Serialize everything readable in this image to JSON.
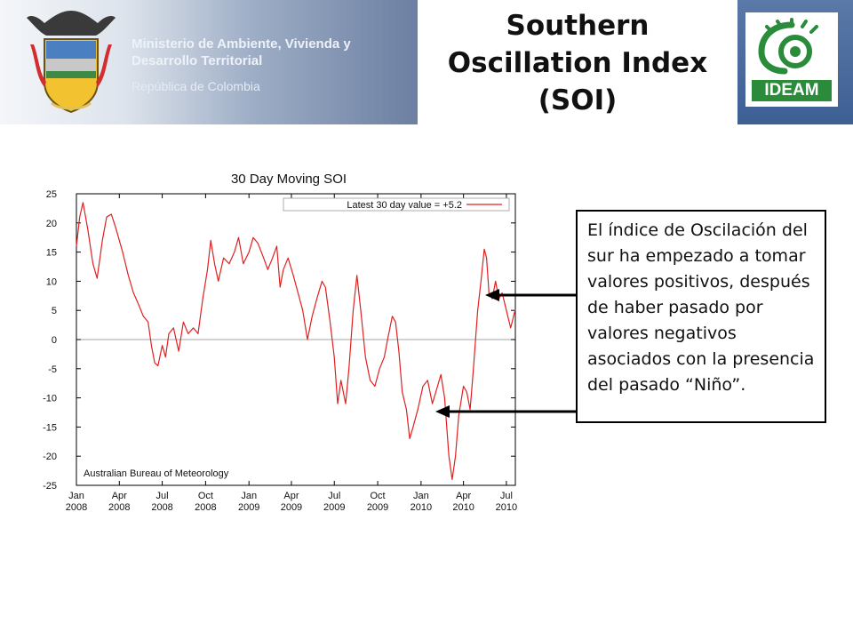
{
  "header": {
    "ministry": "Ministerio de Ambiente, Vivienda y Desarrollo Territorial",
    "republic": "República de Colombia",
    "title": "Southern Oscillation Index (SOI)",
    "logo_text": "IDEAM"
  },
  "icons": {
    "crest": "colombia-coat-of-arms-icon",
    "logo": "ideam-logo-icon",
    "arrow": "arrow-left-icon"
  },
  "colors": {
    "series": "#e02020",
    "logo_green": "#2a8b3b",
    "logo_blue": "#3e5f94"
  },
  "callout": {
    "text": "El índice de Oscilación del sur ha empezado a tomar valores positivos, después de haber pasado por valores negativos asociados con la presencia del pasado “Niño”."
  },
  "chart_data": {
    "type": "line",
    "title": "30 Day Moving SOI",
    "legend": "Latest 30 day value = +5.2",
    "legend_position": "top-right",
    "source": "Australian Bureau of Meteorology",
    "xlabel": "",
    "ylabel": "",
    "grid": false,
    "ylim": [
      -25,
      25
    ],
    "xlim": [
      "2008-01-01",
      "2010-07-20"
    ],
    "yticks": [
      "25",
      "20",
      "15",
      "10",
      "5",
      "0",
      "-5",
      "-10",
      "-15",
      "-20",
      "-25"
    ],
    "xticks": [
      {
        "month": "Jan",
        "year": "2008"
      },
      {
        "month": "Apr",
        "year": "2008"
      },
      {
        "month": "Jul",
        "year": "2008"
      },
      {
        "month": "Oct",
        "year": "2008"
      },
      {
        "month": "Jan",
        "year": "2009"
      },
      {
        "month": "Apr",
        "year": "2009"
      },
      {
        "month": "Jul",
        "year": "2009"
      },
      {
        "month": "Oct",
        "year": "2009"
      },
      {
        "month": "Jan",
        "year": "2010"
      },
      {
        "month": "Apr",
        "year": "2010"
      },
      {
        "month": "Jul",
        "year": "2010"
      }
    ],
    "series": [
      {
        "color": "#e02020",
        "points": [
          [
            "2008-01-01",
            16
          ],
          [
            "2008-01-08",
            21
          ],
          [
            "2008-01-15",
            23.5
          ],
          [
            "2008-01-25",
            19
          ],
          [
            "2008-02-05",
            13
          ],
          [
            "2008-02-14",
            10.5
          ],
          [
            "2008-02-25",
            17
          ],
          [
            "2008-03-05",
            21
          ],
          [
            "2008-03-15",
            21.5
          ],
          [
            "2008-03-25",
            19
          ],
          [
            "2008-04-08",
            15
          ],
          [
            "2008-04-20",
            11
          ],
          [
            "2008-05-01",
            8
          ],
          [
            "2008-05-12",
            6
          ],
          [
            "2008-05-22",
            4
          ],
          [
            "2008-06-01",
            3
          ],
          [
            "2008-06-08",
            -1
          ],
          [
            "2008-06-15",
            -4
          ],
          [
            "2008-06-22",
            -4.5
          ],
          [
            "2008-07-01",
            -1
          ],
          [
            "2008-07-08",
            -3
          ],
          [
            "2008-07-15",
            1
          ],
          [
            "2008-07-25",
            2
          ],
          [
            "2008-08-05",
            -2
          ],
          [
            "2008-08-15",
            3
          ],
          [
            "2008-08-25",
            1
          ],
          [
            "2008-09-05",
            2
          ],
          [
            "2008-09-15",
            1
          ],
          [
            "2008-09-25",
            7
          ],
          [
            "2008-10-05",
            12
          ],
          [
            "2008-10-12",
            17
          ],
          [
            "2008-10-20",
            13
          ],
          [
            "2008-10-28",
            10
          ],
          [
            "2008-11-08",
            14
          ],
          [
            "2008-11-20",
            13
          ],
          [
            "2008-12-01",
            15
          ],
          [
            "2008-12-10",
            17.5
          ],
          [
            "2008-12-20",
            13
          ],
          [
            "2009-01-01",
            15
          ],
          [
            "2009-01-10",
            17.5
          ],
          [
            "2009-01-20",
            16.5
          ],
          [
            "2009-02-01",
            14
          ],
          [
            "2009-02-10",
            12
          ],
          [
            "2009-02-20",
            14
          ],
          [
            "2009-03-01",
            16
          ],
          [
            "2009-03-08",
            9
          ],
          [
            "2009-03-15",
            12
          ],
          [
            "2009-03-25",
            14
          ],
          [
            "2009-04-05",
            11
          ],
          [
            "2009-04-15",
            8
          ],
          [
            "2009-04-25",
            5
          ],
          [
            "2009-05-05",
            0
          ],
          [
            "2009-05-15",
            4
          ],
          [
            "2009-05-25",
            7
          ],
          [
            "2009-06-05",
            10
          ],
          [
            "2009-06-12",
            9
          ],
          [
            "2009-06-22",
            3
          ],
          [
            "2009-07-01",
            -3
          ],
          [
            "2009-07-08",
            -11
          ],
          [
            "2009-07-15",
            -7
          ],
          [
            "2009-07-25",
            -11
          ],
          [
            "2009-08-01",
            -5
          ],
          [
            "2009-08-10",
            5
          ],
          [
            "2009-08-18",
            11
          ],
          [
            "2009-08-26",
            5
          ],
          [
            "2009-09-05",
            -3
          ],
          [
            "2009-09-15",
            -7
          ],
          [
            "2009-09-25",
            -8
          ],
          [
            "2009-10-05",
            -5
          ],
          [
            "2009-10-15",
            -3
          ],
          [
            "2009-10-22",
            0
          ],
          [
            "2009-11-01",
            4
          ],
          [
            "2009-11-08",
            3
          ],
          [
            "2009-11-15",
            -2
          ],
          [
            "2009-11-22",
            -9
          ],
          [
            "2009-12-01",
            -12
          ],
          [
            "2009-12-08",
            -17
          ],
          [
            "2009-12-15",
            -15
          ],
          [
            "2009-12-25",
            -12
          ],
          [
            "2010-01-05",
            -8
          ],
          [
            "2010-01-15",
            -7
          ],
          [
            "2010-01-25",
            -11
          ],
          [
            "2010-02-05",
            -8
          ],
          [
            "2010-02-12",
            -6
          ],
          [
            "2010-02-20",
            -10
          ],
          [
            "2010-03-01",
            -20
          ],
          [
            "2010-03-08",
            -24
          ],
          [
            "2010-03-15",
            -20
          ],
          [
            "2010-03-22",
            -13
          ],
          [
            "2010-04-01",
            -8
          ],
          [
            "2010-04-08",
            -9
          ],
          [
            "2010-04-15",
            -12
          ],
          [
            "2010-04-22",
            -5
          ],
          [
            "2010-05-01",
            5
          ],
          [
            "2010-05-08",
            10
          ],
          [
            "2010-05-15",
            15.5
          ],
          [
            "2010-05-20",
            14
          ],
          [
            "2010-05-25",
            8
          ],
          [
            "2010-06-01",
            7
          ],
          [
            "2010-06-08",
            10
          ],
          [
            "2010-06-15",
            7
          ],
          [
            "2010-06-22",
            8
          ],
          [
            "2010-07-01",
            5
          ],
          [
            "2010-07-10",
            2
          ],
          [
            "2010-07-20",
            5.2
          ]
        ]
      }
    ]
  }
}
